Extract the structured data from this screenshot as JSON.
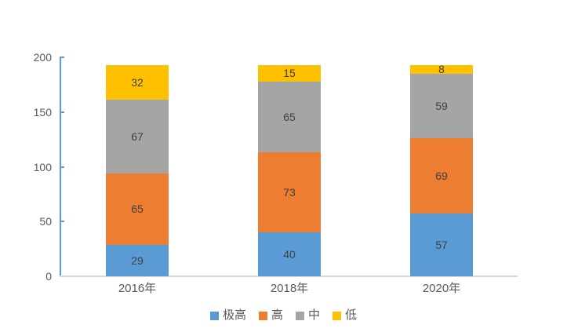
{
  "chart_data": {
    "type": "bar",
    "stacked": true,
    "title": "",
    "xlabel": "",
    "ylabel": "",
    "categories": [
      "2016年",
      "2018年",
      "2020年"
    ],
    "series": [
      {
        "name": "极高",
        "color": "#5B9BD5",
        "values": [
          29,
          40,
          57
        ]
      },
      {
        "name": "高",
        "color": "#ED7D31",
        "values": [
          65,
          73,
          69
        ]
      },
      {
        "name": "中",
        "color": "#A5A5A5",
        "values": [
          67,
          65,
          59
        ]
      },
      {
        "name": "低",
        "color": "#FFC000",
        "values": [
          32,
          15,
          8
        ]
      }
    ],
    "yticks": [
      0,
      50,
      100,
      150,
      200
    ],
    "ylim": [
      0,
      200
    ],
    "grid": false,
    "legend_position": "bottom"
  },
  "colors": {
    "y_axis_line": "#5B9BD5",
    "x_axis_line": "#D9D9D9",
    "tick_label": "#595959",
    "data_label": "#404040",
    "background": "#ffffff"
  }
}
